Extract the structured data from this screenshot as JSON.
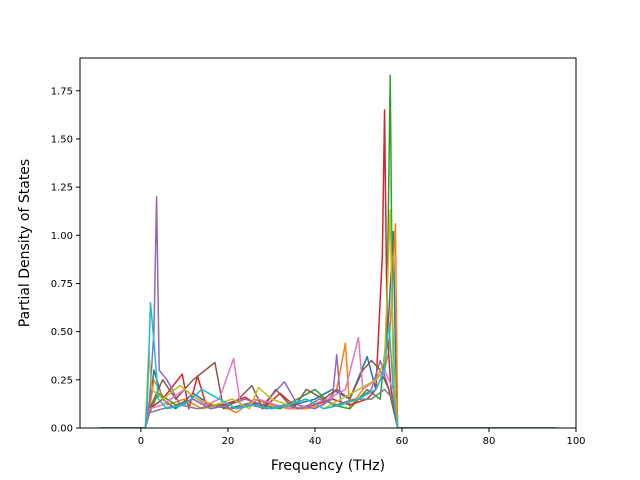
{
  "chart_data": {
    "type": "line",
    "title": "",
    "xlabel": "Frequency (THz)",
    "ylabel": "Partial Density of States",
    "xlim": [
      -14,
      100
    ],
    "ylim": [
      0,
      1.92
    ],
    "xticks": [
      0,
      20,
      40,
      60,
      80,
      100
    ],
    "yticks": [
      0.0,
      0.25,
      0.5,
      0.75,
      1.0,
      1.25,
      1.5,
      1.75
    ],
    "xtick_labels": [
      "0",
      "20",
      "40",
      "60",
      "80",
      "100"
    ],
    "ytick_labels": [
      "0.00",
      "0.25",
      "0.50",
      "0.75",
      "1.00",
      "1.25",
      "1.50",
      "1.75"
    ],
    "grid": false,
    "legend": "none",
    "x_start": -9.5,
    "x_end": 95.5,
    "series": [
      {
        "color": "#1f77b4",
        "points": [
          [
            1,
            0
          ],
          [
            2,
            0.12
          ],
          [
            3,
            0.3
          ],
          [
            5,
            0.15
          ],
          [
            8,
            0.1
          ],
          [
            12,
            0.18
          ],
          [
            16,
            0.12
          ],
          [
            20,
            0.1
          ],
          [
            25,
            0.13
          ],
          [
            30,
            0.1
          ],
          [
            35,
            0.12
          ],
          [
            40,
            0.15
          ],
          [
            44,
            0.2
          ],
          [
            48,
            0.15
          ],
          [
            52,
            0.37
          ],
          [
            54,
            0.2
          ],
          [
            56,
            0.3
          ],
          [
            57,
            0.6
          ],
          [
            58,
            1.02
          ],
          [
            58.5,
            0.4
          ],
          [
            59,
            0
          ]
        ]
      },
      {
        "color": "#ff7f0e",
        "points": [
          [
            1,
            0
          ],
          [
            2,
            0.1
          ],
          [
            3,
            0.25
          ],
          [
            6,
            0.12
          ],
          [
            10,
            0.15
          ],
          [
            14,
            0.1
          ],
          [
            18,
            0.12
          ],
          [
            22,
            0.08
          ],
          [
            26,
            0.15
          ],
          [
            30,
            0.12
          ],
          [
            34,
            0.1
          ],
          [
            38,
            0.1
          ],
          [
            42,
            0.12
          ],
          [
            45,
            0.2
          ],
          [
            47,
            0.44
          ],
          [
            48,
            0.1
          ],
          [
            51,
            0.2
          ],
          [
            54,
            0.25
          ],
          [
            56,
            0.3
          ],
          [
            57,
            0.4
          ],
          [
            58.5,
            1.06
          ],
          [
            59,
            0
          ]
        ]
      },
      {
        "color": "#2ca02c",
        "points": [
          [
            1,
            0
          ],
          [
            2,
            0.08
          ],
          [
            4,
            0.18
          ],
          [
            8,
            0.12
          ],
          [
            12,
            0.15
          ],
          [
            16,
            0.1
          ],
          [
            20,
            0.12
          ],
          [
            24,
            0.15
          ],
          [
            28,
            0.12
          ],
          [
            32,
            0.1
          ],
          [
            36,
            0.15
          ],
          [
            40,
            0.2
          ],
          [
            44,
            0.12
          ],
          [
            48,
            0.1
          ],
          [
            52,
            0.2
          ],
          [
            55,
            0.15
          ],
          [
            56.5,
            0.5
          ],
          [
            57.3,
            1.83
          ],
          [
            57.8,
            0.6
          ],
          [
            58.3,
            0.2
          ],
          [
            59,
            0
          ]
        ]
      },
      {
        "color": "#d62728",
        "points": [
          [
            1,
            0
          ],
          [
            2,
            0.1
          ],
          [
            5,
            0.15
          ],
          [
            9.5,
            0.28
          ],
          [
            11,
            0.1
          ],
          [
            13,
            0.27
          ],
          [
            15,
            0.12
          ],
          [
            19,
            0.12
          ],
          [
            24,
            0.16
          ],
          [
            28,
            0.1
          ],
          [
            32,
            0.18
          ],
          [
            36,
            0.1
          ],
          [
            40,
            0.12
          ],
          [
            44,
            0.15
          ],
          [
            48,
            0.12
          ],
          [
            52,
            0.15
          ],
          [
            54,
            0.2
          ],
          [
            55.5,
            0.9
          ],
          [
            56,
            1.65
          ],
          [
            56.6,
            0.5
          ],
          [
            57.5,
            0.2
          ],
          [
            59,
            0
          ]
        ]
      },
      {
        "color": "#9467bd",
        "points": [
          [
            1,
            0
          ],
          [
            2,
            0.15
          ],
          [
            3,
            0.5
          ],
          [
            3.6,
            1.2
          ],
          [
            4.2,
            0.3
          ],
          [
            6,
            0.25
          ],
          [
            9,
            0.12
          ],
          [
            12,
            0.15
          ],
          [
            16,
            0.1
          ],
          [
            20,
            0.12
          ],
          [
            24,
            0.15
          ],
          [
            28,
            0.12
          ],
          [
            33,
            0.24
          ],
          [
            36,
            0.12
          ],
          [
            40,
            0.1
          ],
          [
            44,
            0.15
          ],
          [
            45,
            0.38
          ],
          [
            46,
            0.12
          ],
          [
            50,
            0.15
          ],
          [
            53,
            0.2
          ],
          [
            55,
            0.35
          ],
          [
            57,
            0.2
          ],
          [
            59,
            0
          ]
        ]
      },
      {
        "color": "#8c564b",
        "points": [
          [
            1,
            0
          ],
          [
            2,
            0.1
          ],
          [
            5,
            0.25
          ],
          [
            8,
            0.15
          ],
          [
            12,
            0.25
          ],
          [
            17,
            0.34
          ],
          [
            19,
            0.1
          ],
          [
            22,
            0.14
          ],
          [
            25.5,
            0.22
          ],
          [
            28,
            0.1
          ],
          [
            31,
            0.2
          ],
          [
            35,
            0.1
          ],
          [
            38,
            0.2
          ],
          [
            42,
            0.15
          ],
          [
            45,
            0.2
          ],
          [
            48,
            0.15
          ],
          [
            51,
            0.3
          ],
          [
            53,
            0.35
          ],
          [
            55,
            0.3
          ],
          [
            57,
            0.2
          ],
          [
            59,
            0
          ]
        ]
      },
      {
        "color": "#e377c2",
        "points": [
          [
            1,
            0
          ],
          [
            2,
            0.1
          ],
          [
            5,
            0.12
          ],
          [
            10,
            0.2
          ],
          [
            15,
            0.12
          ],
          [
            18,
            0.15
          ],
          [
            21.3,
            0.36
          ],
          [
            23,
            0.1
          ],
          [
            27,
            0.15
          ],
          [
            31,
            0.12
          ],
          [
            35,
            0.1
          ],
          [
            39,
            0.12
          ],
          [
            43,
            0.15
          ],
          [
            47,
            0.2
          ],
          [
            50,
            0.47
          ],
          [
            51,
            0.2
          ],
          [
            54,
            0.25
          ],
          [
            56,
            0.3
          ],
          [
            58,
            0.2
          ],
          [
            59,
            0
          ]
        ]
      },
      {
        "color": "#7f7f7f",
        "points": [
          [
            1,
            0
          ],
          [
            2,
            0.08
          ],
          [
            5,
            0.1
          ],
          [
            9,
            0.12
          ],
          [
            13,
            0.1
          ],
          [
            17,
            0.12
          ],
          [
            21,
            0.1
          ],
          [
            25,
            0.12
          ],
          [
            29,
            0.1
          ],
          [
            33,
            0.12
          ],
          [
            37,
            0.1
          ],
          [
            41,
            0.15
          ],
          [
            45,
            0.12
          ],
          [
            49,
            0.15
          ],
          [
            53,
            0.15
          ],
          [
            56,
            0.2
          ],
          [
            58,
            0.15
          ],
          [
            59,
            0
          ]
        ]
      },
      {
        "color": "#bcbd22",
        "points": [
          [
            1,
            0
          ],
          [
            1.8,
            0.4
          ],
          [
            2.5,
            0.2
          ],
          [
            5,
            0.15
          ],
          [
            9,
            0.22
          ],
          [
            13,
            0.15
          ],
          [
            17,
            0.12
          ],
          [
            21,
            0.15
          ],
          [
            25,
            0.1
          ],
          [
            27,
            0.21
          ],
          [
            30,
            0.15
          ],
          [
            34,
            0.12
          ],
          [
            38,
            0.15
          ],
          [
            42,
            0.1
          ],
          [
            46,
            0.15
          ],
          [
            50,
            0.2
          ],
          [
            54,
            0.25
          ],
          [
            56,
            0.35
          ],
          [
            57.3,
            1.13
          ],
          [
            58,
            0.3
          ],
          [
            59,
            0
          ]
        ]
      },
      {
        "color": "#17becf",
        "points": [
          [
            1,
            0
          ],
          [
            1.5,
            0.15
          ],
          [
            2.2,
            0.65
          ],
          [
            3,
            0.45
          ],
          [
            4,
            0.15
          ],
          [
            6,
            0.1
          ],
          [
            10,
            0.12
          ],
          [
            14,
            0.2
          ],
          [
            18,
            0.15
          ],
          [
            22,
            0.1
          ],
          [
            26,
            0.12
          ],
          [
            30,
            0.1
          ],
          [
            34,
            0.12
          ],
          [
            38,
            0.15
          ],
          [
            42,
            0.1
          ],
          [
            46,
            0.12
          ],
          [
            50,
            0.15
          ],
          [
            54,
            0.2
          ],
          [
            56,
            0.3
          ],
          [
            57,
            0.55
          ],
          [
            58,
            0.2
          ],
          [
            59,
            0
          ]
        ]
      }
    ]
  }
}
